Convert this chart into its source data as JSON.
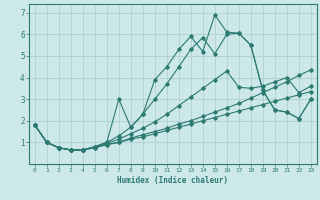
{
  "xlabel": "Humidex (Indice chaleur)",
  "bg_color": "#cce8e8",
  "grid_color": "#aacccc",
  "line_color": "#2d7a72",
  "xlim": [
    -0.5,
    23.5
  ],
  "ylim": [
    0,
    7.4
  ],
  "xticks": [
    0,
    1,
    2,
    3,
    4,
    5,
    6,
    7,
    8,
    9,
    10,
    11,
    12,
    13,
    14,
    15,
    16,
    17,
    18,
    19,
    20,
    21,
    22,
    23
  ],
  "yticks": [
    1,
    2,
    3,
    4,
    5,
    6,
    7
  ],
  "lines": [
    [
      0,
      1.8,
      1,
      1.0,
      2,
      0.75,
      3,
      0.65,
      4,
      0.65,
      5,
      0.75,
      6,
      0.9,
      7,
      1.0,
      8,
      1.15,
      9,
      1.25,
      10,
      1.4,
      11,
      1.55,
      12,
      1.7,
      13,
      1.85,
      14,
      2.0,
      15,
      2.15,
      16,
      2.3,
      17,
      2.45,
      18,
      2.6,
      19,
      2.75,
      20,
      2.9,
      21,
      3.05,
      22,
      3.2,
      23,
      3.35
    ],
    [
      0,
      1.8,
      1,
      1.0,
      2,
      0.75,
      3,
      0.65,
      4,
      0.65,
      5,
      0.75,
      6,
      0.9,
      7,
      1.0,
      8,
      1.2,
      9,
      1.35,
      10,
      1.5,
      11,
      1.65,
      12,
      1.85,
      13,
      2.0,
      14,
      2.2,
      15,
      2.4,
      16,
      2.6,
      17,
      2.8,
      18,
      3.05,
      19,
      3.3,
      20,
      3.55,
      21,
      3.8,
      22,
      4.1,
      23,
      4.35
    ],
    [
      0,
      1.8,
      1,
      1.0,
      2,
      0.75,
      3,
      0.65,
      4,
      0.65,
      5,
      0.8,
      6,
      0.95,
      7,
      1.15,
      8,
      1.4,
      9,
      1.65,
      10,
      1.95,
      11,
      2.3,
      12,
      2.7,
      13,
      3.1,
      14,
      3.5,
      15,
      3.9,
      16,
      4.3,
      17,
      3.55,
      18,
      3.5,
      19,
      3.6,
      20,
      3.8,
      21,
      4.0,
      22,
      3.3,
      23,
      3.6
    ],
    [
      0,
      1.8,
      1,
      1.0,
      2,
      0.75,
      3,
      0.65,
      4,
      0.65,
      5,
      0.8,
      6,
      1.0,
      7,
      1.3,
      8,
      1.7,
      9,
      2.3,
      10,
      3.0,
      11,
      3.7,
      12,
      4.5,
      13,
      5.3,
      14,
      5.85,
      15,
      5.1,
      16,
      6.0,
      17,
      6.05,
      18,
      5.5,
      19,
      3.4,
      20,
      2.5,
      21,
      2.4,
      22,
      2.1,
      23,
      3.0
    ],
    [
      0,
      1.8,
      1,
      1.0,
      2,
      0.75,
      3,
      0.65,
      4,
      0.65,
      5,
      0.8,
      6,
      1.0,
      7,
      3.0,
      8,
      1.7,
      9,
      2.3,
      10,
      3.9,
      11,
      4.5,
      12,
      5.3,
      13,
      5.9,
      14,
      5.2,
      15,
      6.9,
      16,
      6.1,
      17,
      6.05,
      18,
      5.5,
      19,
      3.4,
      20,
      2.5,
      21,
      2.4,
      22,
      2.1,
      23,
      3.0
    ]
  ]
}
